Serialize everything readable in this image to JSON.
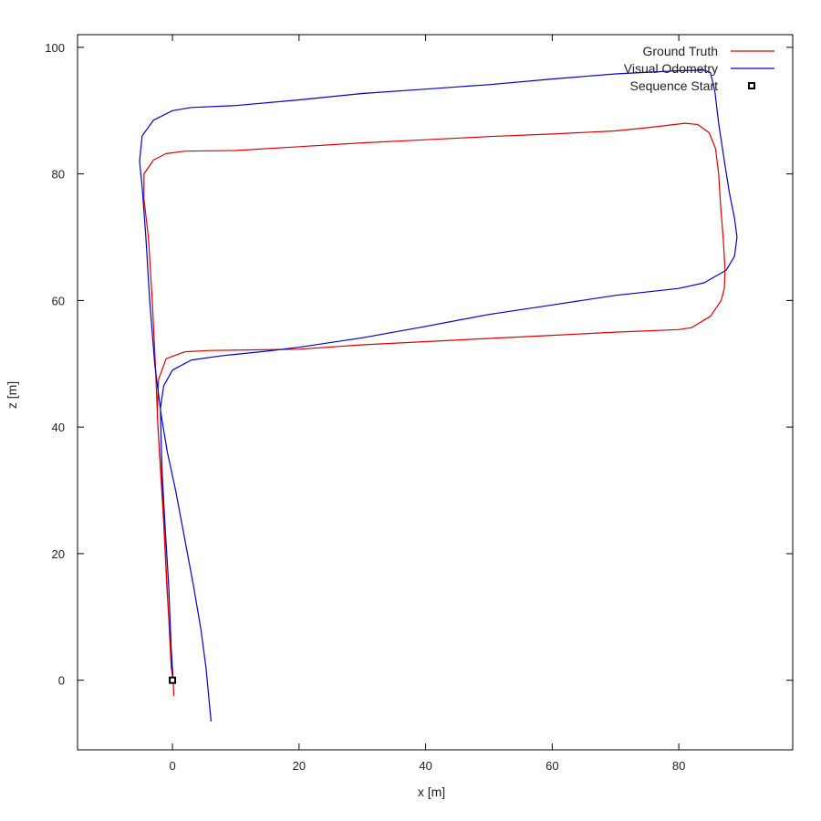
{
  "chart_data": {
    "type": "line",
    "xlabel": "x [m]",
    "ylabel": "z [m]",
    "xlim": [
      -15,
      98
    ],
    "ylim": [
      -11,
      102
    ],
    "x_ticks": [
      0,
      20,
      40,
      60,
      80
    ],
    "y_ticks": [
      0,
      20,
      40,
      60,
      80,
      100
    ],
    "grid": false,
    "legend_position": "top-right",
    "series": [
      {
        "name": "Ground Truth",
        "color": "#dd0000",
        "kind": "line",
        "points": [
          [
            0.2,
            -2.5
          ],
          [
            0.1,
            0
          ],
          [
            -0.3,
            5
          ],
          [
            -0.9,
            15
          ],
          [
            -1.4,
            25
          ],
          [
            -2.0,
            35
          ],
          [
            -2.4,
            42
          ],
          [
            -2.2,
            47.5
          ],
          [
            -1.0,
            50.8
          ],
          [
            2,
            51.9
          ],
          [
            6,
            52.1
          ],
          [
            20,
            52.3
          ],
          [
            30,
            53.0
          ],
          [
            40,
            53.5
          ],
          [
            50,
            54.0
          ],
          [
            60,
            54.5
          ],
          [
            70,
            55.0
          ],
          [
            80,
            55.4
          ],
          [
            82,
            55.7
          ],
          [
            85,
            57.5
          ],
          [
            86.7,
            60
          ],
          [
            87.2,
            62
          ],
          [
            87.3,
            65
          ],
          [
            87.0,
            70
          ],
          [
            86.6,
            75
          ],
          [
            86.3,
            80
          ],
          [
            85.8,
            84
          ],
          [
            84.8,
            86.5
          ],
          [
            83,
            87.8
          ],
          [
            81,
            88.0
          ],
          [
            75,
            87.3
          ],
          [
            70,
            86.8
          ],
          [
            60,
            86.3
          ],
          [
            50,
            85.9
          ],
          [
            40,
            85.4
          ],
          [
            30,
            84.9
          ],
          [
            20,
            84.3
          ],
          [
            10,
            83.7
          ],
          [
            2,
            83.6
          ],
          [
            -1,
            83.2
          ],
          [
            -3,
            82.2
          ],
          [
            -4.5,
            80
          ],
          [
            -4.5,
            76
          ],
          [
            -3.8,
            70
          ],
          [
            -3.2,
            60
          ],
          [
            -2.7,
            50
          ],
          [
            -2.3,
            40
          ],
          [
            -1.6,
            30
          ],
          [
            -1.1,
            20
          ],
          [
            -0.6,
            10
          ],
          [
            -0.2,
            2
          ],
          [
            0.1,
            0
          ]
        ]
      },
      {
        "name": "Visual Odometry",
        "color": "#0000cc",
        "kind": "line",
        "points": [
          [
            0.1,
            0
          ],
          [
            -0.2,
            5
          ],
          [
            -0.6,
            15
          ],
          [
            -1.2,
            25
          ],
          [
            -1.6,
            32
          ],
          [
            -1.8,
            38
          ],
          [
            -1.9,
            43
          ],
          [
            -1.4,
            46.5
          ],
          [
            0,
            49.0
          ],
          [
            3,
            50.6
          ],
          [
            8,
            51.3
          ],
          [
            15,
            52.0
          ],
          [
            20,
            52.6
          ],
          [
            30,
            54.1
          ],
          [
            40,
            55.9
          ],
          [
            50,
            57.8
          ],
          [
            60,
            59.3
          ],
          [
            70,
            60.8
          ],
          [
            80,
            61.9
          ],
          [
            84,
            62.8
          ],
          [
            87.5,
            64.8
          ],
          [
            88.8,
            67
          ],
          [
            89.2,
            70
          ],
          [
            88.8,
            73
          ],
          [
            88.0,
            77
          ],
          [
            87.2,
            82
          ],
          [
            86.3,
            88
          ],
          [
            85.7,
            93
          ],
          [
            85.0,
            96
          ],
          [
            84,
            96.4
          ],
          [
            80,
            96.3
          ],
          [
            70,
            95.8
          ],
          [
            60,
            95.0
          ],
          [
            50,
            94.1
          ],
          [
            40,
            93.4
          ],
          [
            30,
            92.7
          ],
          [
            20,
            91.7
          ],
          [
            10,
            90.8
          ],
          [
            3,
            90.5
          ],
          [
            0,
            90.0
          ],
          [
            -3,
            88.5
          ],
          [
            -4.8,
            86
          ],
          [
            -5.2,
            82
          ],
          [
            -4.8,
            78
          ],
          [
            -4.2,
            70
          ],
          [
            -3.6,
            60
          ],
          [
            -2.8,
            50
          ],
          [
            -1.8,
            42
          ],
          [
            -0.8,
            36
          ],
          [
            0.5,
            30
          ],
          [
            2,
            22
          ],
          [
            3.3,
            15
          ],
          [
            4.5,
            8
          ],
          [
            5.3,
            2
          ],
          [
            6.1,
            -6.5
          ]
        ]
      },
      {
        "name": "Sequence Start",
        "color": "#000000",
        "kind": "marker",
        "points": [
          [
            0,
            0
          ]
        ]
      }
    ]
  }
}
